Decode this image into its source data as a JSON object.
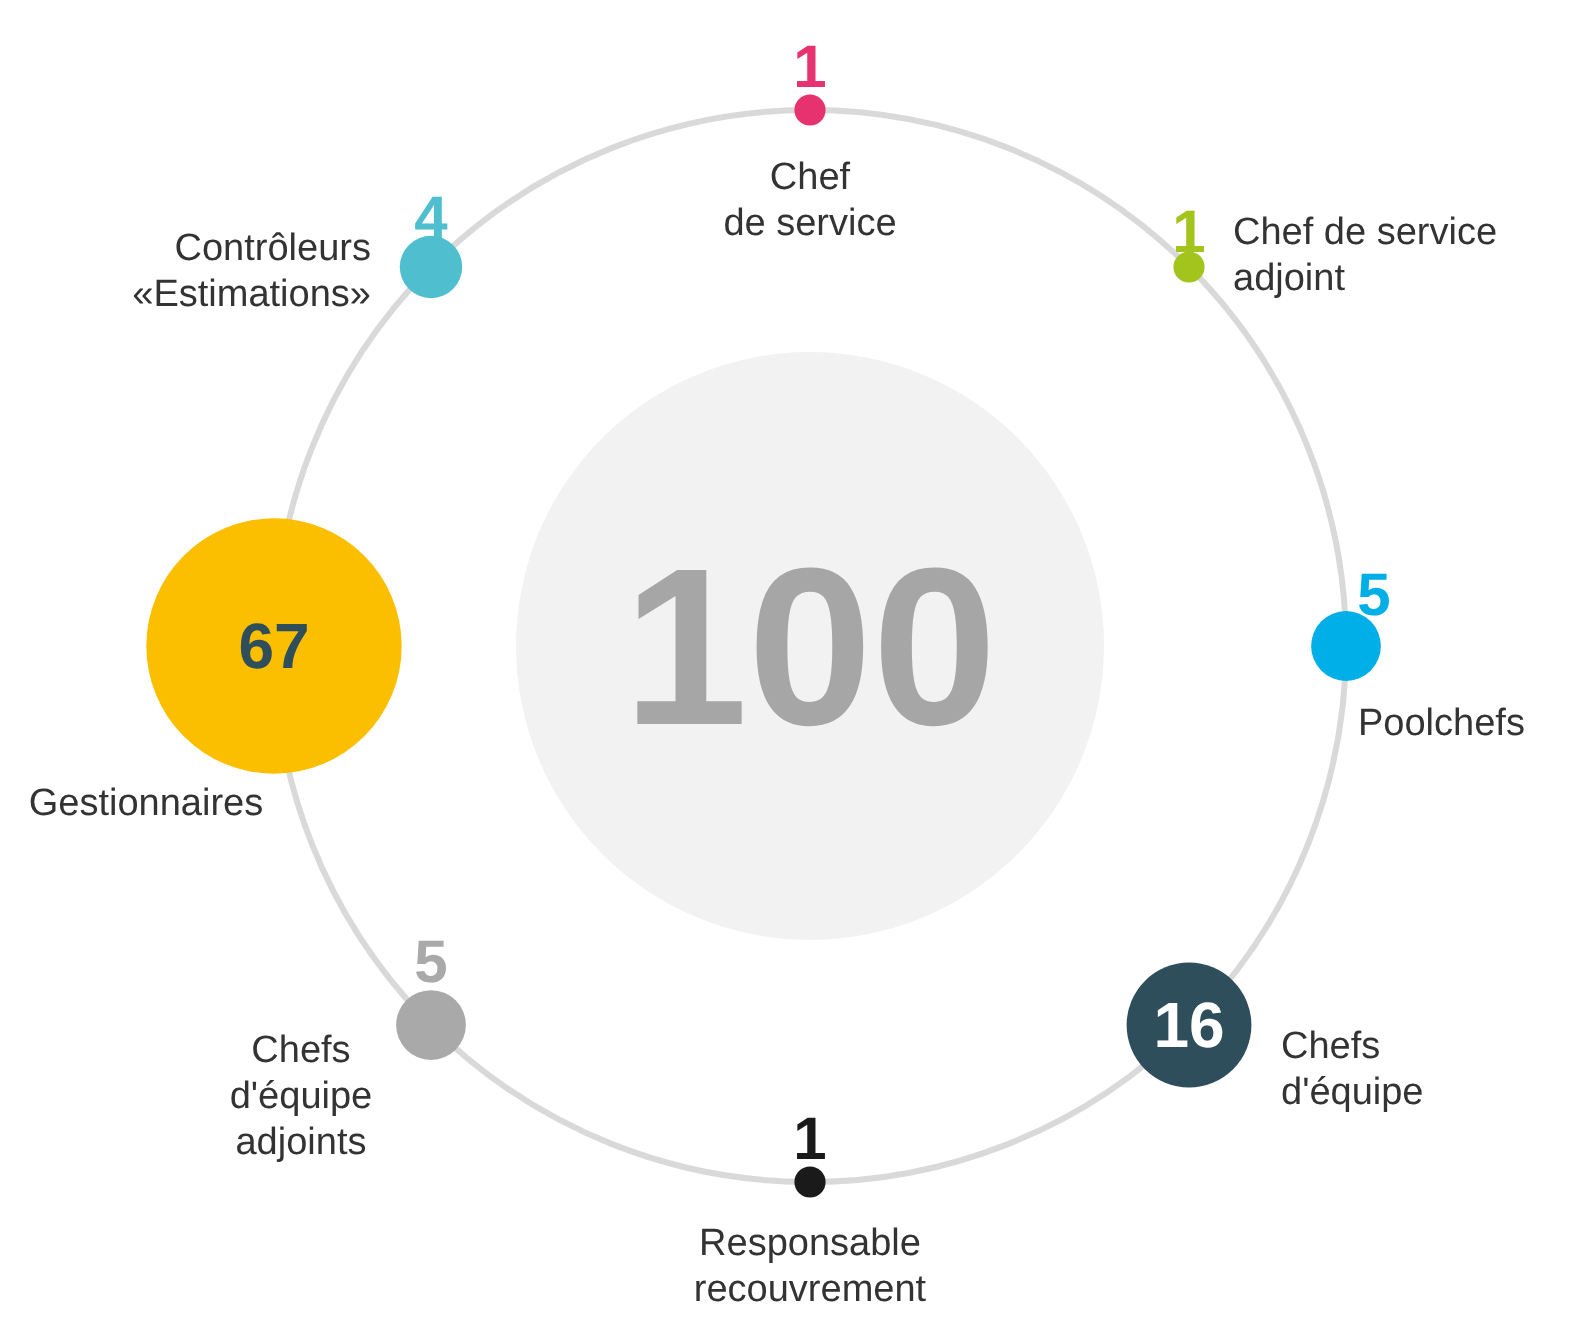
{
  "chart_data": {
    "type": "other",
    "categories": [
      "Chef\nde service",
      "Chef de service\nadjoint",
      "Poolchefs",
      "Chefs\nd'équipe",
      "Responsable\nrecouvrement",
      "Chefs\nd'équipe\nadjoints",
      "Gestionnaires",
      "Contrôleurs\n«Estimations»"
    ],
    "values": [
      1,
      1,
      5,
      16,
      1,
      5,
      67,
      4
    ],
    "colors": [
      "#e6336f",
      "#a3c41c",
      "#00aee8",
      "#2e4e5b",
      "#1a1a1a",
      "#a9a9a9",
      "#fbbf00",
      "#4fbfcf"
    ],
    "data_labels": true,
    "annotations": [
      "100"
    ]
  }
}
